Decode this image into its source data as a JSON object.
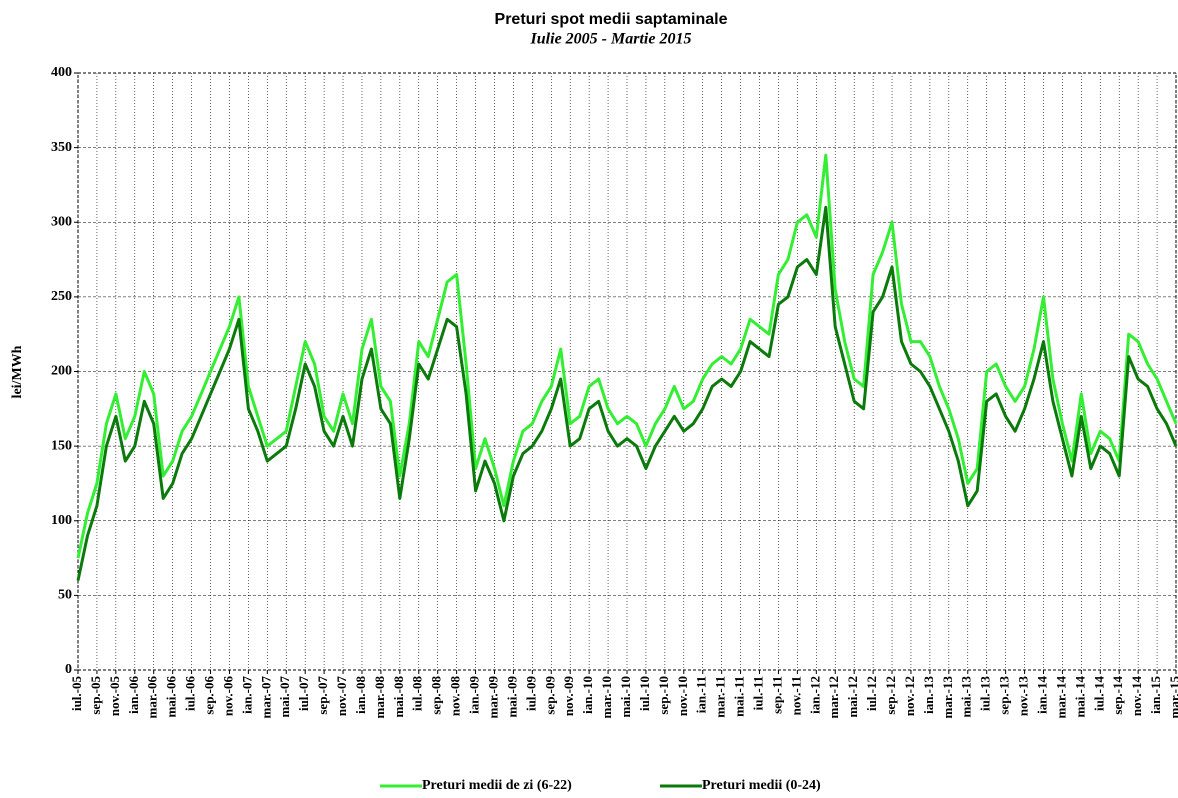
{
  "chart_data": {
    "type": "line",
    "title": "Preturi spot medii saptaminale",
    "subtitle": "Iulie 2005 - Martie 2015",
    "y_label": "lei/MWh",
    "categories": [
      "iul.-05",
      null,
      "sep.-05",
      null,
      "nov.-05",
      null,
      "ian.-06",
      null,
      "mar.-06",
      null,
      "mai.-06",
      null,
      "iul.-06",
      null,
      "sep.-06",
      null,
      "nov.-06",
      null,
      "ian.-07",
      null,
      "mar.-07",
      null,
      "mai.-07",
      null,
      "iul.-07",
      null,
      "sep.-07",
      null,
      "nov.-07",
      null,
      "ian.-08",
      null,
      "mar.-08",
      null,
      "mai.-08",
      null,
      "iul.-08",
      null,
      "sep.-08",
      null,
      "nov.-08",
      null,
      "ian.-09",
      null,
      "mar.-09",
      null,
      "mai.-09",
      null,
      "iul.-09",
      null,
      "sep.-09",
      null,
      "nov.-09",
      null,
      "ian.-10",
      null,
      "mar.-10",
      null,
      "mai.-10",
      null,
      "iul.-10",
      null,
      "sep.-10",
      null,
      "nov.-10",
      null,
      "ian.-11",
      null,
      "mar.-11",
      null,
      "mai.-11",
      null,
      "iul.-11",
      null,
      "sep.-11",
      null,
      "nov.-11",
      null,
      "ian.-12",
      null,
      "mar.-12",
      null,
      "mai.-12",
      null,
      "iul.-12",
      null,
      "sep.-12",
      null,
      "nov.-12",
      null,
      "ian.-13",
      null,
      "mar.-13",
      null,
      "mai.-13",
      null,
      "iul.-13",
      null,
      "sep.-13",
      null,
      "nov.-13",
      null,
      "ian.-14",
      null,
      "mar.-14",
      null,
      "mai.-14",
      null,
      "iul.-14",
      null,
      "sep.-14",
      null,
      "nov.-14",
      null,
      "ian.-15",
      null,
      "mar.-15"
    ],
    "series": [
      {
        "name": "Preturi medii de zi (6-22)",
        "color": "#33ee33",
        "values": [
          75,
          105,
          125,
          165,
          185,
          155,
          170,
          200,
          185,
          130,
          140,
          160,
          170,
          185,
          200,
          215,
          230,
          250,
          190,
          170,
          150,
          155,
          160,
          190,
          220,
          205,
          170,
          160,
          185,
          165,
          215,
          235,
          190,
          180,
          130,
          165,
          220,
          210,
          235,
          260,
          265,
          205,
          135,
          155,
          135,
          110,
          140,
          160,
          165,
          180,
          190,
          215,
          165,
          170,
          190,
          195,
          175,
          165,
          170,
          165,
          150,
          165,
          175,
          190,
          175,
          180,
          195,
          205,
          210,
          205,
          215,
          235,
          230,
          225,
          265,
          275,
          300,
          305,
          290,
          345,
          255,
          220,
          195,
          190,
          265,
          280,
          300,
          245,
          220,
          220,
          210,
          190,
          175,
          155,
          125,
          135,
          200,
          205,
          190,
          180,
          190,
          215,
          250,
          195,
          165,
          140,
          185,
          145,
          160,
          155,
          140,
          225,
          220,
          205,
          195,
          180,
          165
        ]
      },
      {
        "name": "Preturi medii (0-24)",
        "color": "#0a7a0a",
        "values": [
          60,
          90,
          110,
          150,
          170,
          140,
          150,
          180,
          165,
          115,
          125,
          145,
          155,
          170,
          185,
          200,
          215,
          235,
          175,
          160,
          140,
          145,
          150,
          175,
          205,
          190,
          160,
          150,
          170,
          150,
          195,
          215,
          175,
          165,
          115,
          155,
          205,
          195,
          215,
          235,
          230,
          185,
          120,
          140,
          125,
          100,
          130,
          145,
          150,
          160,
          175,
          195,
          150,
          155,
          175,
          180,
          160,
          150,
          155,
          150,
          135,
          150,
          160,
          170,
          160,
          165,
          175,
          190,
          195,
          190,
          200,
          220,
          215,
          210,
          245,
          250,
          270,
          275,
          265,
          310,
          230,
          205,
          180,
          175,
          240,
          250,
          270,
          220,
          205,
          200,
          190,
          175,
          160,
          140,
          110,
          120,
          180,
          185,
          170,
          160,
          175,
          195,
          220,
          180,
          155,
          130,
          170,
          135,
          150,
          145,
          130,
          210,
          195,
          190,
          175,
          165,
          150
        ]
      }
    ],
    "ylim": [
      0,
      400
    ],
    "yticks": [
      0,
      50,
      100,
      150,
      200,
      250,
      300,
      350,
      400
    ],
    "grid": true,
    "legend": "bottom"
  }
}
